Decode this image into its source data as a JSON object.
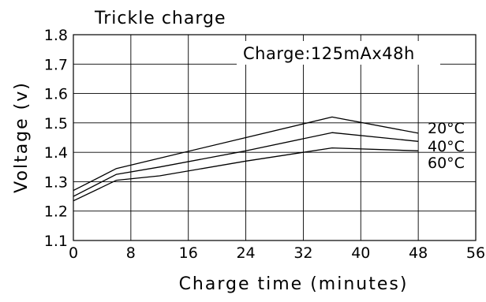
{
  "chart_data": {
    "type": "line",
    "title": "Trickle charge",
    "annotation": "Charge:125mAx48h",
    "xlabel": "Charge time (minutes)",
    "ylabel": "Voltage (v)",
    "xlim": [
      0,
      56
    ],
    "ylim": [
      1.1,
      1.8
    ],
    "x_ticks": [
      0,
      8,
      16,
      24,
      32,
      40,
      48,
      56
    ],
    "y_ticks": [
      1.1,
      1.2,
      1.3,
      1.4,
      1.5,
      1.6,
      1.7,
      1.8
    ],
    "x_tick_labels": [
      "0",
      "8",
      "16",
      "24",
      "32",
      "40",
      "48",
      "56"
    ],
    "y_tick_labels": [
      "1.1",
      "1.2",
      "1.3",
      "1.4",
      "1.5",
      "1.6",
      "1.7",
      "1.8"
    ],
    "grid": true,
    "series": [
      {
        "name": "20°C",
        "points": [
          [
            0,
            1.27
          ],
          [
            6,
            1.345
          ],
          [
            12,
            1.38
          ],
          [
            24,
            1.45
          ],
          [
            36,
            1.52
          ],
          [
            48,
            1.465
          ]
        ]
      },
      {
        "name": "40°C",
        "points": [
          [
            0,
            1.25
          ],
          [
            6,
            1.325
          ],
          [
            12,
            1.35
          ],
          [
            24,
            1.405
          ],
          [
            36,
            1.467
          ],
          [
            48,
            1.437
          ]
        ]
      },
      {
        "name": "60°C",
        "points": [
          [
            0,
            1.235
          ],
          [
            6,
            1.305
          ],
          [
            12,
            1.32
          ],
          [
            24,
            1.37
          ],
          [
            36,
            1.415
          ],
          [
            48,
            1.405
          ]
        ]
      }
    ]
  }
}
